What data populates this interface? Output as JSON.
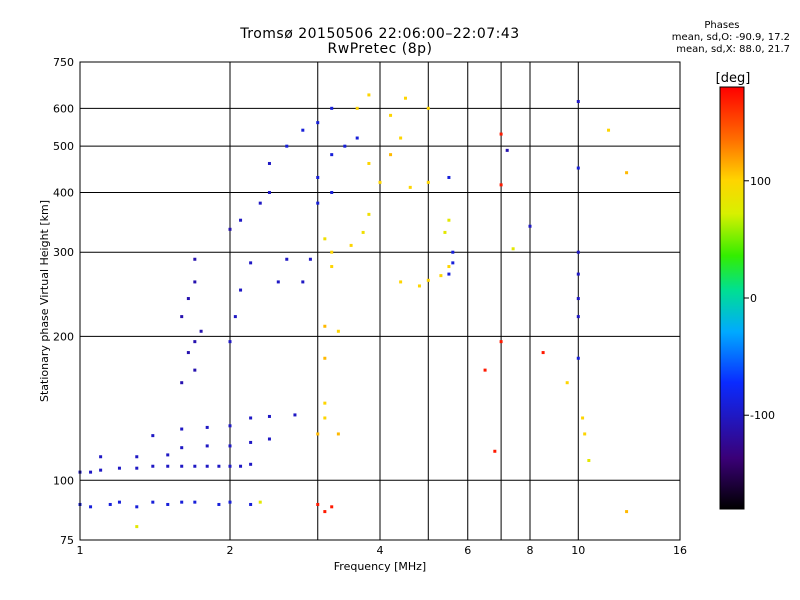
{
  "chart_data": {
    "type": "scatter",
    "title": "Tromsø 20150506 22:06:00–22:07:43",
    "subtitle": "RwPretec (8p)",
    "xlabel": "Frequency [MHz]",
    "ylabel": "Stationary phase Virtual Height [km]",
    "x_scale": "log",
    "y_scale": "log",
    "xlim": [
      1,
      16
    ],
    "ylim": [
      75,
      750
    ],
    "x_ticks": [
      1,
      2,
      4,
      6,
      8,
      10,
      16
    ],
    "x_grid_only": [
      3,
      5,
      7
    ],
    "y_ticks": [
      75,
      100,
      200,
      300,
      400,
      500,
      600,
      750
    ],
    "y_grid_only": [],
    "phases_header": "Phases",
    "phases_o": "mean, sd,O: -90.9, 17.2",
    "phases_x": "mean, sd,X:  88.0, 21.7",
    "colorbar": {
      "label": "[deg]",
      "ticks": [
        100,
        0,
        -100
      ],
      "range": [
        -180,
        180
      ]
    },
    "points": [
      [
        1.0,
        104,
        -100
      ],
      [
        1.05,
        104,
        -100
      ],
      [
        1.1,
        105,
        -100
      ],
      [
        1.2,
        106,
        -100
      ],
      [
        1.3,
        106,
        -100
      ],
      [
        1.4,
        107,
        -100
      ],
      [
        1.5,
        107,
        -100
      ],
      [
        1.6,
        107,
        -100
      ],
      [
        1.7,
        107,
        -100
      ],
      [
        1.8,
        107,
        -100
      ],
      [
        1.9,
        107,
        -100
      ],
      [
        2.0,
        107,
        -100
      ],
      [
        2.1,
        107,
        -100
      ],
      [
        2.2,
        108,
        -100
      ],
      [
        1.1,
        112,
        -100
      ],
      [
        1.3,
        112,
        -100
      ],
      [
        1.5,
        113,
        -100
      ],
      [
        1.6,
        117,
        -100
      ],
      [
        1.8,
        118,
        -100
      ],
      [
        2.0,
        118,
        -100
      ],
      [
        2.2,
        120,
        -100
      ],
      [
        2.4,
        122,
        -100
      ],
      [
        1.4,
        124,
        -100
      ],
      [
        1.6,
        128,
        -100
      ],
      [
        1.8,
        129,
        -100
      ],
      [
        2.0,
        130,
        -100
      ],
      [
        2.2,
        135,
        -100
      ],
      [
        2.4,
        136,
        -100
      ],
      [
        2.7,
        137,
        -100
      ],
      [
        1.6,
        160,
        -110
      ],
      [
        1.7,
        170,
        -110
      ],
      [
        1.65,
        185,
        -110
      ],
      [
        1.7,
        195,
        -110
      ],
      [
        1.75,
        205,
        -110
      ],
      [
        1.6,
        220,
        -110
      ],
      [
        1.65,
        240,
        -110
      ],
      [
        1.7,
        260,
        -110
      ],
      [
        1.7,
        290,
        -110
      ],
      [
        2.0,
        195,
        -100
      ],
      [
        2.05,
        220,
        -100
      ],
      [
        2.1,
        250,
        -100
      ],
      [
        2.2,
        285,
        -100
      ],
      [
        2.0,
        335,
        -110
      ],
      [
        2.1,
        350,
        -100
      ],
      [
        2.3,
        380,
        -100
      ],
      [
        2.4,
        400,
        -100
      ],
      [
        2.4,
        460,
        -100
      ],
      [
        2.6,
        500,
        -90
      ],
      [
        2.8,
        540,
        -90
      ],
      [
        3.0,
        560,
        -90
      ],
      [
        3.2,
        600,
        -90
      ],
      [
        3.0,
        430,
        -90
      ],
      [
        3.2,
        480,
        -90
      ],
      [
        3.4,
        500,
        -90
      ],
      [
        3.6,
        520,
        -90
      ],
      [
        3.0,
        380,
        -90
      ],
      [
        3.2,
        400,
        -90
      ],
      [
        2.5,
        260,
        -100
      ],
      [
        2.6,
        290,
        -100
      ],
      [
        2.8,
        260,
        -100
      ],
      [
        2.9,
        290,
        -100
      ],
      [
        3.1,
        320,
        90
      ],
      [
        3.2,
        300,
        100
      ],
      [
        3.1,
        210,
        110
      ],
      [
        3.1,
        180,
        110
      ],
      [
        3.3,
        205,
        100
      ],
      [
        3.1,
        145,
        100
      ],
      [
        3.1,
        135,
        100
      ],
      [
        3.0,
        125,
        110
      ],
      [
        3.3,
        125,
        110
      ],
      [
        3.2,
        280,
        100
      ],
      [
        3.5,
        310,
        100
      ],
      [
        3.7,
        330,
        90
      ],
      [
        3.8,
        360,
        90
      ],
      [
        4.0,
        420,
        100
      ],
      [
        3.8,
        460,
        100
      ],
      [
        4.2,
        480,
        110
      ],
      [
        3.6,
        600,
        100
      ],
      [
        3.8,
        640,
        100
      ],
      [
        4.2,
        580,
        100
      ],
      [
        4.4,
        260,
        100
      ],
      [
        4.8,
        255,
        100
      ],
      [
        5.0,
        262,
        100
      ],
      [
        5.3,
        268,
        100
      ],
      [
        5.5,
        280,
        100
      ],
      [
        4.6,
        410,
        100
      ],
      [
        5.0,
        420,
        100
      ],
      [
        4.4,
        520,
        100
      ],
      [
        4.5,
        630,
        100
      ],
      [
        5.0,
        600,
        100
      ],
      [
        5.5,
        430,
        -90
      ],
      [
        5.6,
        300,
        -90
      ],
      [
        5.6,
        285,
        -90
      ],
      [
        5.5,
        270,
        -90
      ],
      [
        5.5,
        350,
        80
      ],
      [
        5.4,
        330,
        80
      ],
      [
        1.0,
        89,
        -90
      ],
      [
        1.05,
        88,
        -90
      ],
      [
        1.15,
        89,
        -90
      ],
      [
        1.2,
        90,
        -90
      ],
      [
        1.3,
        88,
        -90
      ],
      [
        1.4,
        90,
        -90
      ],
      [
        1.5,
        89,
        -90
      ],
      [
        1.6,
        90,
        -90
      ],
      [
        1.7,
        90,
        -90
      ],
      [
        1.9,
        89,
        -90
      ],
      [
        2.0,
        90,
        -90
      ],
      [
        2.2,
        89,
        -90
      ],
      [
        2.3,
        90,
        80
      ],
      [
        3.0,
        89,
        170
      ],
      [
        3.1,
        86,
        170
      ],
      [
        3.2,
        88,
        170
      ],
      [
        1.3,
        80,
        80
      ],
      [
        7.0,
        530,
        170
      ],
      [
        7.0,
        415,
        170
      ],
      [
        7.2,
        490,
        -110
      ],
      [
        6.5,
        170,
        170
      ],
      [
        6.8,
        115,
        170
      ],
      [
        7.0,
        195,
        170
      ],
      [
        7.4,
        305,
        80
      ],
      [
        8.0,
        340,
        -100
      ],
      [
        8.5,
        185,
        170
      ],
      [
        9.5,
        160,
        100
      ],
      [
        10.0,
        620,
        -100
      ],
      [
        10.0,
        450,
        -90
      ],
      [
        10.0,
        300,
        -100
      ],
      [
        10.0,
        270,
        -100
      ],
      [
        10.0,
        240,
        -100
      ],
      [
        10.0,
        220,
        -100
      ],
      [
        10.0,
        180,
        -90
      ],
      [
        10.2,
        135,
        100
      ],
      [
        10.3,
        125,
        100
      ],
      [
        10.5,
        110,
        80
      ],
      [
        11.5,
        540,
        100
      ],
      [
        12.5,
        440,
        110
      ],
      [
        12.5,
        86,
        110
      ]
    ]
  }
}
